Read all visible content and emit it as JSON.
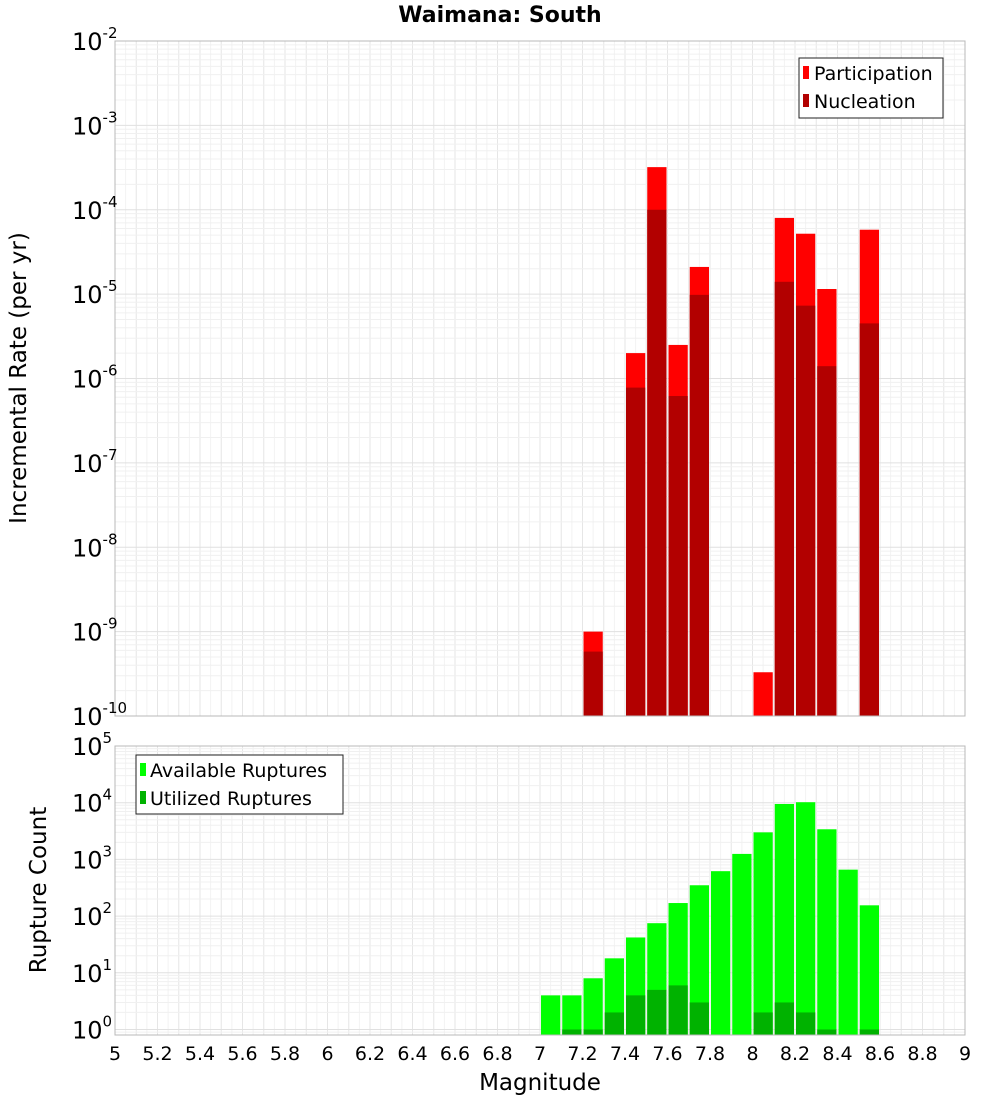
{
  "chart_data": [
    {
      "type": "bar",
      "title": "Waimana: South",
      "xlabel": "",
      "ylabel": "Incremental Rate (per yr)",
      "yscale": "log",
      "ylim": [
        1e-10,
        0.01
      ],
      "xlim": [
        5,
        9
      ],
      "bin_width": 0.1,
      "legend_position": "top-right",
      "grid": true,
      "series": [
        {
          "name": "Participation",
          "color": "#ff0000",
          "points": [
            {
              "x": 7.25,
              "y": 1e-09
            },
            {
              "x": 7.45,
              "y": 2e-06
            },
            {
              "x": 7.55,
              "y": 0.00032
            },
            {
              "x": 7.65,
              "y": 2.5e-06
            },
            {
              "x": 7.75,
              "y": 2.1e-05
            },
            {
              "x": 8.05,
              "y": 3.3e-10
            },
            {
              "x": 8.15,
              "y": 8e-05
            },
            {
              "x": 8.25,
              "y": 5.2e-05
            },
            {
              "x": 8.35,
              "y": 1.15e-05
            },
            {
              "x": 8.55,
              "y": 5.8e-05
            }
          ]
        },
        {
          "name": "Nucleation",
          "color": "#b20000",
          "points": [
            {
              "x": 7.25,
              "y": 5.8e-10
            },
            {
              "x": 7.45,
              "y": 7.8e-07
            },
            {
              "x": 7.55,
              "y": 0.0001
            },
            {
              "x": 7.65,
              "y": 6.2e-07
            },
            {
              "x": 7.75,
              "y": 9.8e-06
            },
            {
              "x": 8.15,
              "y": 1.4e-05
            },
            {
              "x": 8.25,
              "y": 7.3e-06
            },
            {
              "x": 8.35,
              "y": 1.4e-06
            },
            {
              "x": 8.55,
              "y": 4.5e-06
            }
          ]
        }
      ]
    },
    {
      "type": "bar",
      "title": "",
      "xlabel": "Magnitude",
      "ylabel": "Rupture Count",
      "yscale": "log",
      "ylim": [
        0.8,
        100000.0
      ],
      "xlim": [
        5,
        9
      ],
      "bin_width": 0.1,
      "legend_position": "top-left",
      "grid": true,
      "xticks": [
        "5",
        "5.2",
        "5.4",
        "5.6",
        "5.8",
        "6",
        "6.2",
        "6.4",
        "6.6",
        "6.8",
        "7",
        "7.2",
        "7.4",
        "7.6",
        "7.8",
        "8",
        "8.2",
        "8.4",
        "8.6",
        "8.8",
        "9"
      ],
      "series": [
        {
          "name": "Available Ruptures",
          "color": "#00ff00",
          "points": [
            {
              "x": 7.05,
              "y": 4
            },
            {
              "x": 7.15,
              "y": 4
            },
            {
              "x": 7.25,
              "y": 8
            },
            {
              "x": 7.35,
              "y": 18
            },
            {
              "x": 7.45,
              "y": 42
            },
            {
              "x": 7.55,
              "y": 75
            },
            {
              "x": 7.65,
              "y": 170
            },
            {
              "x": 7.75,
              "y": 350
            },
            {
              "x": 7.85,
              "y": 620
            },
            {
              "x": 7.95,
              "y": 1250
            },
            {
              "x": 8.05,
              "y": 3000
            },
            {
              "x": 8.15,
              "y": 9500
            },
            {
              "x": 8.25,
              "y": 10200
            },
            {
              "x": 8.35,
              "y": 3400
            },
            {
              "x": 8.45,
              "y": 660
            },
            {
              "x": 8.55,
              "y": 155
            }
          ]
        },
        {
          "name": "Utilized Ruptures",
          "color": "#00b200",
          "points": [
            {
              "x": 7.15,
              "y": 1
            },
            {
              "x": 7.25,
              "y": 1
            },
            {
              "x": 7.35,
              "y": 2
            },
            {
              "x": 7.45,
              "y": 4
            },
            {
              "x": 7.55,
              "y": 5
            },
            {
              "x": 7.65,
              "y": 6
            },
            {
              "x": 7.75,
              "y": 3
            },
            {
              "x": 8.05,
              "y": 2
            },
            {
              "x": 8.15,
              "y": 3
            },
            {
              "x": 8.25,
              "y": 2
            },
            {
              "x": 8.35,
              "y": 1
            },
            {
              "x": 8.55,
              "y": 1
            }
          ]
        }
      ]
    }
  ]
}
